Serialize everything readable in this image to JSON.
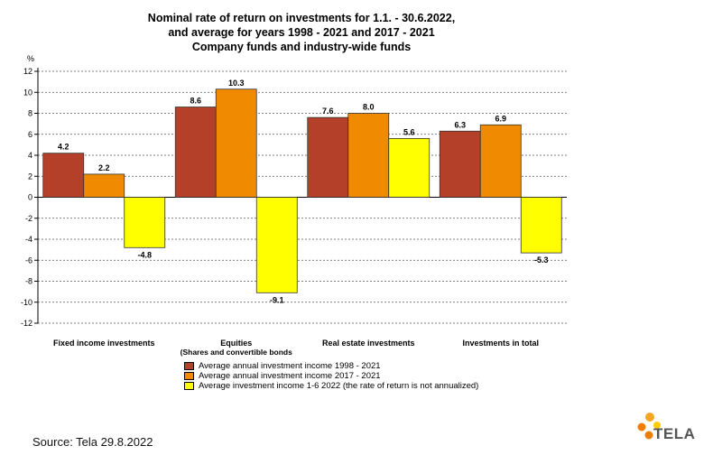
{
  "title": {
    "line1": "Nominal rate of return on investments for 1.1. - 30.6.2022,",
    "line2": "and average for years 1998 - 2021 and 2017 - 2021",
    "line3": "Company funds and industry-wide funds"
  },
  "chart_data": {
    "type": "bar",
    "ylabel": "%",
    "ylim": [
      -12,
      12
    ],
    "yticks": [
      12,
      10,
      8,
      6,
      4,
      2,
      0,
      -2,
      -4,
      -6,
      -8,
      -10,
      -12
    ],
    "grid": true,
    "categories": [
      "Fixed income investments",
      "Equities",
      "Real estate investments",
      "Investments  in total"
    ],
    "category_sublabels": [
      "",
      "(Shares  and  convertible bonds",
      "",
      ""
    ],
    "series": [
      {
        "name": "Average annual investment income 1998 - 2021",
        "color": "#b5402a",
        "values": [
          4.2,
          8.6,
          7.6,
          6.3
        ]
      },
      {
        "name": "Average annual investment income 2017 - 2021",
        "color": "#f08a00",
        "values": [
          2.2,
          10.3,
          8.0,
          6.9
        ]
      },
      {
        "name": "Average investment income 1-6 2022 (the rate of return is not annualized)",
        "color": "#ffff00",
        "values": [
          -4.8,
          -9.1,
          5.6,
          -5.3
        ]
      }
    ],
    "legend_position": "bottom"
  },
  "source": "Source: Tela 29.8.2022",
  "logo": {
    "text": "TELA",
    "icon": "tela-dots-icon",
    "colors": [
      "#f07d00",
      "#f5a623",
      "#ffcc00"
    ]
  }
}
